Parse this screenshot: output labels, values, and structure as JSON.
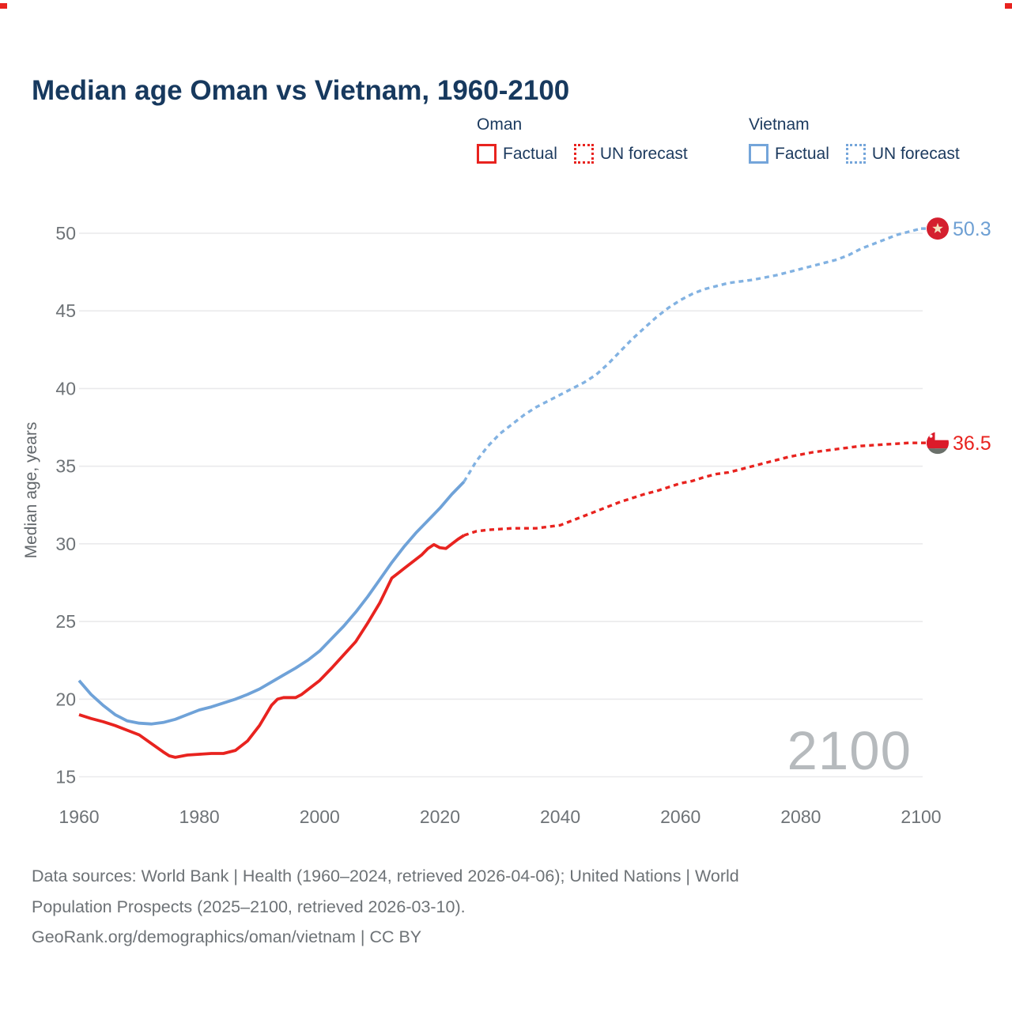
{
  "title": "Median age Oman vs Vietnam, 1960-2100",
  "legend": {
    "oman": {
      "title": "Oman",
      "factual_label": "Factual",
      "forecast_label": "UN forecast"
    },
    "vietnam": {
      "title": "Vietnam",
      "factual_label": "Factual",
      "forecast_label": "UN forecast"
    }
  },
  "colors": {
    "title_navy": "#17395e",
    "legend_navy": "#1c3a5e",
    "oman_red": "#e8231f",
    "vietnam_blue": "#6fa2d8",
    "vietnam_blue_forecast": "#82b2e2",
    "gridline": "#eaeaec",
    "tick_gray": "#6e7377",
    "axis_label_gray": "#62676b",
    "footer_gray": "#6d7276",
    "watermark_gray": "#b6babd",
    "vietnam_marker_red": "#d41f2e",
    "vietnam_star": "#f4e0bf",
    "oman_flag_red": "#db1b2a",
    "oman_flag_green": "#6a706a",
    "end_label_blue": "#6d9fd3",
    "end_label_red": "#e8231f"
  },
  "chart_data": {
    "type": "line",
    "title": "Median age Oman vs Vietnam, 1960-2100",
    "xlabel": "",
    "ylabel": "Median age, years",
    "xlim": [
      1953,
      2113
    ],
    "ylim": [
      12.5,
      52
    ],
    "x_ticks": [
      1960,
      1980,
      2000,
      2020,
      2040,
      2060,
      2080,
      2100
    ],
    "y_ticks": [
      15,
      20,
      25,
      30,
      35,
      40,
      45,
      50
    ],
    "grid": "horizontal-only",
    "legend_position": "top",
    "watermark": "2100",
    "series": [
      {
        "name": "Vietnam Factual",
        "country": "Vietnam",
        "kind": "factual",
        "style": "solid",
        "color": "#6fa2d8",
        "points": [
          [
            1960,
            21.2
          ],
          [
            1962,
            20.3
          ],
          [
            1964,
            19.6
          ],
          [
            1966,
            19.0
          ],
          [
            1968,
            18.6
          ],
          [
            1970,
            18.45
          ],
          [
            1972,
            18.4
          ],
          [
            1974,
            18.5
          ],
          [
            1976,
            18.7
          ],
          [
            1978,
            19.0
          ],
          [
            1980,
            19.3
          ],
          [
            1982,
            19.5
          ],
          [
            1984,
            19.75
          ],
          [
            1986,
            20.0
          ],
          [
            1988,
            20.3
          ],
          [
            1990,
            20.65
          ],
          [
            1992,
            21.1
          ],
          [
            1994,
            21.55
          ],
          [
            1996,
            22.0
          ],
          [
            1998,
            22.5
          ],
          [
            2000,
            23.1
          ],
          [
            2002,
            23.9
          ],
          [
            2004,
            24.7
          ],
          [
            2006,
            25.6
          ],
          [
            2008,
            26.6
          ],
          [
            2010,
            27.7
          ],
          [
            2012,
            28.8
          ],
          [
            2014,
            29.8
          ],
          [
            2016,
            30.7
          ],
          [
            2018,
            31.5
          ],
          [
            2020,
            32.3
          ],
          [
            2022,
            33.2
          ],
          [
            2024,
            34.0
          ]
        ]
      },
      {
        "name": "Vietnam UN forecast",
        "country": "Vietnam",
        "kind": "forecast",
        "style": "dashed",
        "color": "#82b2e2",
        "end_label": "50.3",
        "end_marker": "vietnam-flag",
        "points": [
          [
            2024,
            34.0
          ],
          [
            2026,
            35.3
          ],
          [
            2028,
            36.3
          ],
          [
            2030,
            37.1
          ],
          [
            2032,
            37.7
          ],
          [
            2034,
            38.3
          ],
          [
            2036,
            38.8
          ],
          [
            2038,
            39.2
          ],
          [
            2040,
            39.6
          ],
          [
            2042,
            40.0
          ],
          [
            2044,
            40.4
          ],
          [
            2046,
            40.9
          ],
          [
            2048,
            41.6
          ],
          [
            2050,
            42.4
          ],
          [
            2052,
            43.2
          ],
          [
            2054,
            43.9
          ],
          [
            2056,
            44.6
          ],
          [
            2058,
            45.2
          ],
          [
            2060,
            45.7
          ],
          [
            2062,
            46.1
          ],
          [
            2064,
            46.4
          ],
          [
            2066,
            46.6
          ],
          [
            2068,
            46.8
          ],
          [
            2070,
            46.9
          ],
          [
            2072,
            47.0
          ],
          [
            2074,
            47.15
          ],
          [
            2076,
            47.3
          ],
          [
            2078,
            47.5
          ],
          [
            2080,
            47.7
          ],
          [
            2082,
            47.9
          ],
          [
            2084,
            48.1
          ],
          [
            2086,
            48.3
          ],
          [
            2088,
            48.6
          ],
          [
            2090,
            49.0
          ],
          [
            2092,
            49.3
          ],
          [
            2094,
            49.6
          ],
          [
            2096,
            49.9
          ],
          [
            2098,
            50.1
          ],
          [
            2100,
            50.3
          ]
        ]
      },
      {
        "name": "Oman Factual",
        "country": "Oman",
        "kind": "factual",
        "style": "solid",
        "color": "#e8231f",
        "points": [
          [
            1960,
            19.0
          ],
          [
            1962,
            18.75
          ],
          [
            1964,
            18.55
          ],
          [
            1966,
            18.3
          ],
          [
            1968,
            18.0
          ],
          [
            1970,
            17.7
          ],
          [
            1972,
            17.15
          ],
          [
            1974,
            16.6
          ],
          [
            1975,
            16.35
          ],
          [
            1976,
            16.25
          ],
          [
            1978,
            16.4
          ],
          [
            1980,
            16.45
          ],
          [
            1982,
            16.5
          ],
          [
            1984,
            16.5
          ],
          [
            1986,
            16.7
          ],
          [
            1988,
            17.3
          ],
          [
            1990,
            18.3
          ],
          [
            1992,
            19.6
          ],
          [
            1993,
            20.0
          ],
          [
            1994,
            20.1
          ],
          [
            1996,
            20.1
          ],
          [
            1997,
            20.3
          ],
          [
            1998,
            20.6
          ],
          [
            2000,
            21.2
          ],
          [
            2002,
            22.0
          ],
          [
            2004,
            22.85
          ],
          [
            2006,
            23.7
          ],
          [
            2008,
            24.9
          ],
          [
            2010,
            26.2
          ],
          [
            2011,
            27.0
          ],
          [
            2012,
            27.8
          ],
          [
            2013,
            28.1
          ],
          [
            2014,
            28.4
          ],
          [
            2015,
            28.7
          ],
          [
            2016,
            29.0
          ],
          [
            2017,
            29.3
          ],
          [
            2018,
            29.7
          ],
          [
            2019,
            29.95
          ],
          [
            2020,
            29.75
          ],
          [
            2021,
            29.7
          ],
          [
            2022,
            30.0
          ],
          [
            2023,
            30.3
          ],
          [
            2024,
            30.55
          ]
        ]
      },
      {
        "name": "Oman UN forecast",
        "country": "Oman",
        "kind": "forecast",
        "style": "dashed",
        "color": "#e8231f",
        "end_label": "36.5",
        "end_marker": "oman-flag",
        "points": [
          [
            2024,
            30.55
          ],
          [
            2026,
            30.8
          ],
          [
            2028,
            30.9
          ],
          [
            2030,
            30.95
          ],
          [
            2032,
            31.0
          ],
          [
            2034,
            31.0
          ],
          [
            2036,
            31.0
          ],
          [
            2038,
            31.1
          ],
          [
            2040,
            31.2
          ],
          [
            2042,
            31.5
          ],
          [
            2044,
            31.8
          ],
          [
            2046,
            32.1
          ],
          [
            2048,
            32.4
          ],
          [
            2050,
            32.7
          ],
          [
            2052,
            32.95
          ],
          [
            2054,
            33.2
          ],
          [
            2056,
            33.4
          ],
          [
            2058,
            33.65
          ],
          [
            2060,
            33.9
          ],
          [
            2062,
            34.05
          ],
          [
            2064,
            34.3
          ],
          [
            2066,
            34.5
          ],
          [
            2068,
            34.6
          ],
          [
            2070,
            34.8
          ],
          [
            2072,
            35.0
          ],
          [
            2074,
            35.2
          ],
          [
            2076,
            35.4
          ],
          [
            2078,
            35.6
          ],
          [
            2080,
            35.75
          ],
          [
            2082,
            35.9
          ],
          [
            2084,
            36.0
          ],
          [
            2086,
            36.1
          ],
          [
            2088,
            36.2
          ],
          [
            2090,
            36.3
          ],
          [
            2092,
            36.35
          ],
          [
            2094,
            36.4
          ],
          [
            2096,
            36.45
          ],
          [
            2098,
            36.5
          ],
          [
            2100,
            36.5
          ]
        ]
      }
    ]
  },
  "footer": {
    "line1": "Data sources: World Bank | Health (1960–2024, retrieved 2026-04-06); United Nations | World",
    "line2": "Population Prospects (2025–2100, retrieved 2026-03-10).",
    "line3": "GeoRank.org/demographics/oman/vietnam | CC BY"
  }
}
